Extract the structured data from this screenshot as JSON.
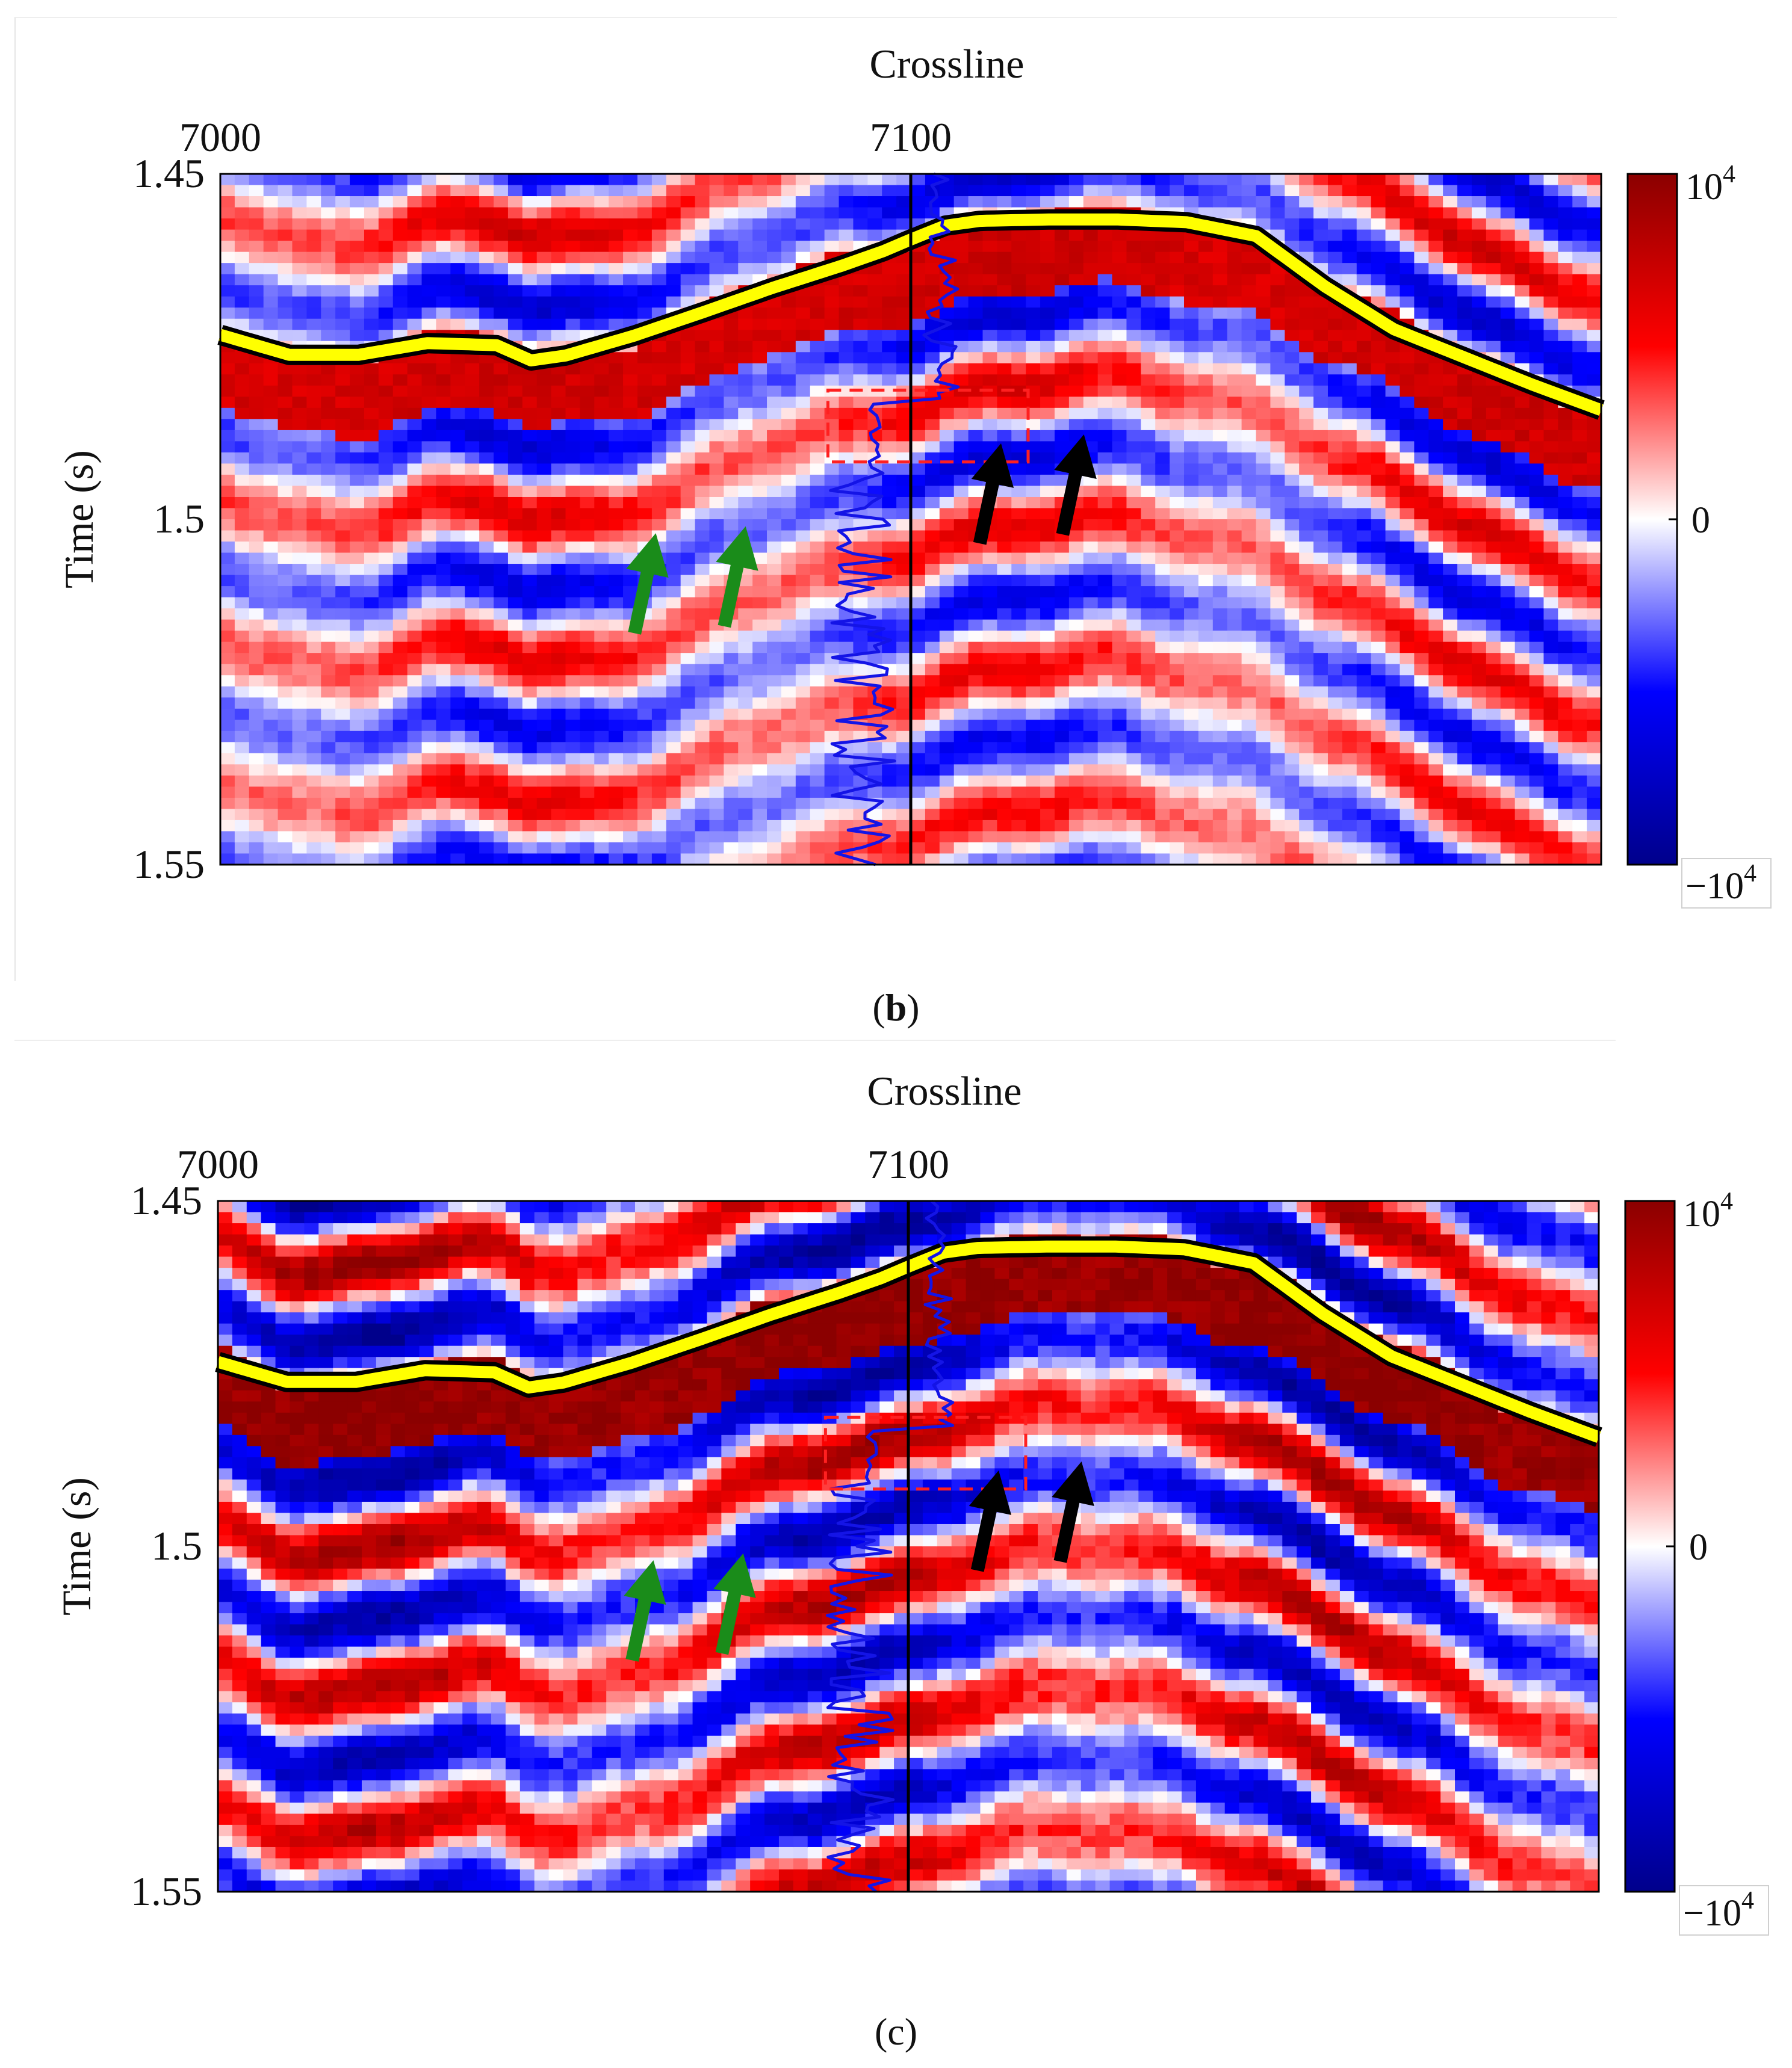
{
  "panels": [
    {
      "id": "b",
      "caption_letter": "b",
      "caption_open": "(",
      "caption_close": ")",
      "seed": 11,
      "strength": 0.72
    },
    {
      "id": "c",
      "caption_letter": "c",
      "caption_open": "(",
      "caption_close": ")",
      "seed": 29,
      "strength": 1.0
    }
  ],
  "chart_data": [
    {
      "type": "heatmap",
      "panel": "b",
      "title": "",
      "xlabel": "Crossline",
      "ylabel": "Time (s)",
      "xlim": [
        7000,
        7200
      ],
      "ylim": [
        1.45,
        1.55
      ],
      "x_ticks": [
        7000,
        7100
      ],
      "x_tick_labels": [
        "7000",
        "7100"
      ],
      "y_ticks": [
        1.45,
        1.5,
        1.55
      ],
      "y_tick_labels": [
        "1.45",
        "1.5",
        "1.55"
      ],
      "colorbar": {
        "min_label_base": "−10",
        "max_label_base": "10",
        "exponent": "4",
        "mid_label": "0",
        "range": [
          -10000,
          10000
        ],
        "colormap": [
          "#00008b",
          "#0000ff",
          "#ffffff",
          "#ff0000",
          "#8b0000"
        ]
      },
      "well_crossline": 7100,
      "horizon": {
        "crossline": [
          7000,
          7010,
          7020,
          7030,
          7040,
          7045,
          7050,
          7060,
          7070,
          7080,
          7090,
          7096,
          7100,
          7105,
          7110,
          7120,
          7130,
          7140,
          7150,
          7160,
          7170,
          7180,
          7190,
          7200
        ],
        "time": [
          1.4733,
          1.4762,
          1.4762,
          1.4745,
          1.4748,
          1.477,
          1.4763,
          1.4734,
          1.47,
          1.4665,
          1.4633,
          1.4612,
          1.4595,
          1.4575,
          1.4568,
          1.4566,
          1.4566,
          1.457,
          1.459,
          1.4663,
          1.4725,
          1.4765,
          1.4805,
          1.4842
        ]
      },
      "dashed_box": {
        "crossline": [
          7088,
          7117
        ],
        "time": [
          1.4813,
          1.4917
        ]
      },
      "arrows_green": [
        {
          "crossline": 7060,
          "time": 1.5165
        },
        {
          "crossline": 7073,
          "time": 1.5155
        }
      ],
      "arrows_black": [
        {
          "crossline": 7110,
          "time": 1.5035
        },
        {
          "crossline": 7122,
          "time": 1.5022
        }
      ],
      "well_log_reference_crossline": 7100
    },
    {
      "type": "heatmap",
      "panel": "c",
      "title": "",
      "xlabel": "Crossline",
      "ylabel": "Time (s)",
      "xlim": [
        7000,
        7200
      ],
      "ylim": [
        1.45,
        1.55
      ],
      "x_ticks": [
        7000,
        7100
      ],
      "x_tick_labels": [
        "7000",
        "7100"
      ],
      "y_ticks": [
        1.45,
        1.5,
        1.55
      ],
      "y_tick_labels": [
        "1.45",
        "1.5",
        "1.55"
      ],
      "colorbar": {
        "min_label_base": "−10",
        "max_label_base": "10",
        "exponent": "4",
        "mid_label": "0",
        "range": [
          -10000,
          10000
        ],
        "colormap": [
          "#00008b",
          "#0000ff",
          "#ffffff",
          "#ff0000",
          "#8b0000"
        ]
      },
      "well_crossline": 7100,
      "horizon": {
        "crossline": [
          7000,
          7010,
          7020,
          7030,
          7040,
          7045,
          7050,
          7060,
          7070,
          7080,
          7090,
          7096,
          7100,
          7105,
          7110,
          7120,
          7130,
          7140,
          7150,
          7160,
          7170,
          7180,
          7190,
          7200
        ],
        "time": [
          1.4733,
          1.4762,
          1.4762,
          1.4745,
          1.4748,
          1.477,
          1.4763,
          1.4734,
          1.47,
          1.4665,
          1.4633,
          1.4612,
          1.4595,
          1.4575,
          1.4568,
          1.4566,
          1.4566,
          1.457,
          1.459,
          1.4663,
          1.4725,
          1.4765,
          1.4805,
          1.4842
        ]
      },
      "dashed_box": {
        "crossline": [
          7088,
          7117
        ],
        "time": [
          1.4813,
          1.4917
        ]
      },
      "arrows_green": [
        {
          "crossline": 7060,
          "time": 1.5165
        },
        {
          "crossline": 7073,
          "time": 1.5155
        }
      ],
      "arrows_black": [
        {
          "crossline": 7110,
          "time": 1.5035
        },
        {
          "crossline": 7122,
          "time": 1.5022
        }
      ],
      "well_log_reference_crossline": 7100
    }
  ]
}
